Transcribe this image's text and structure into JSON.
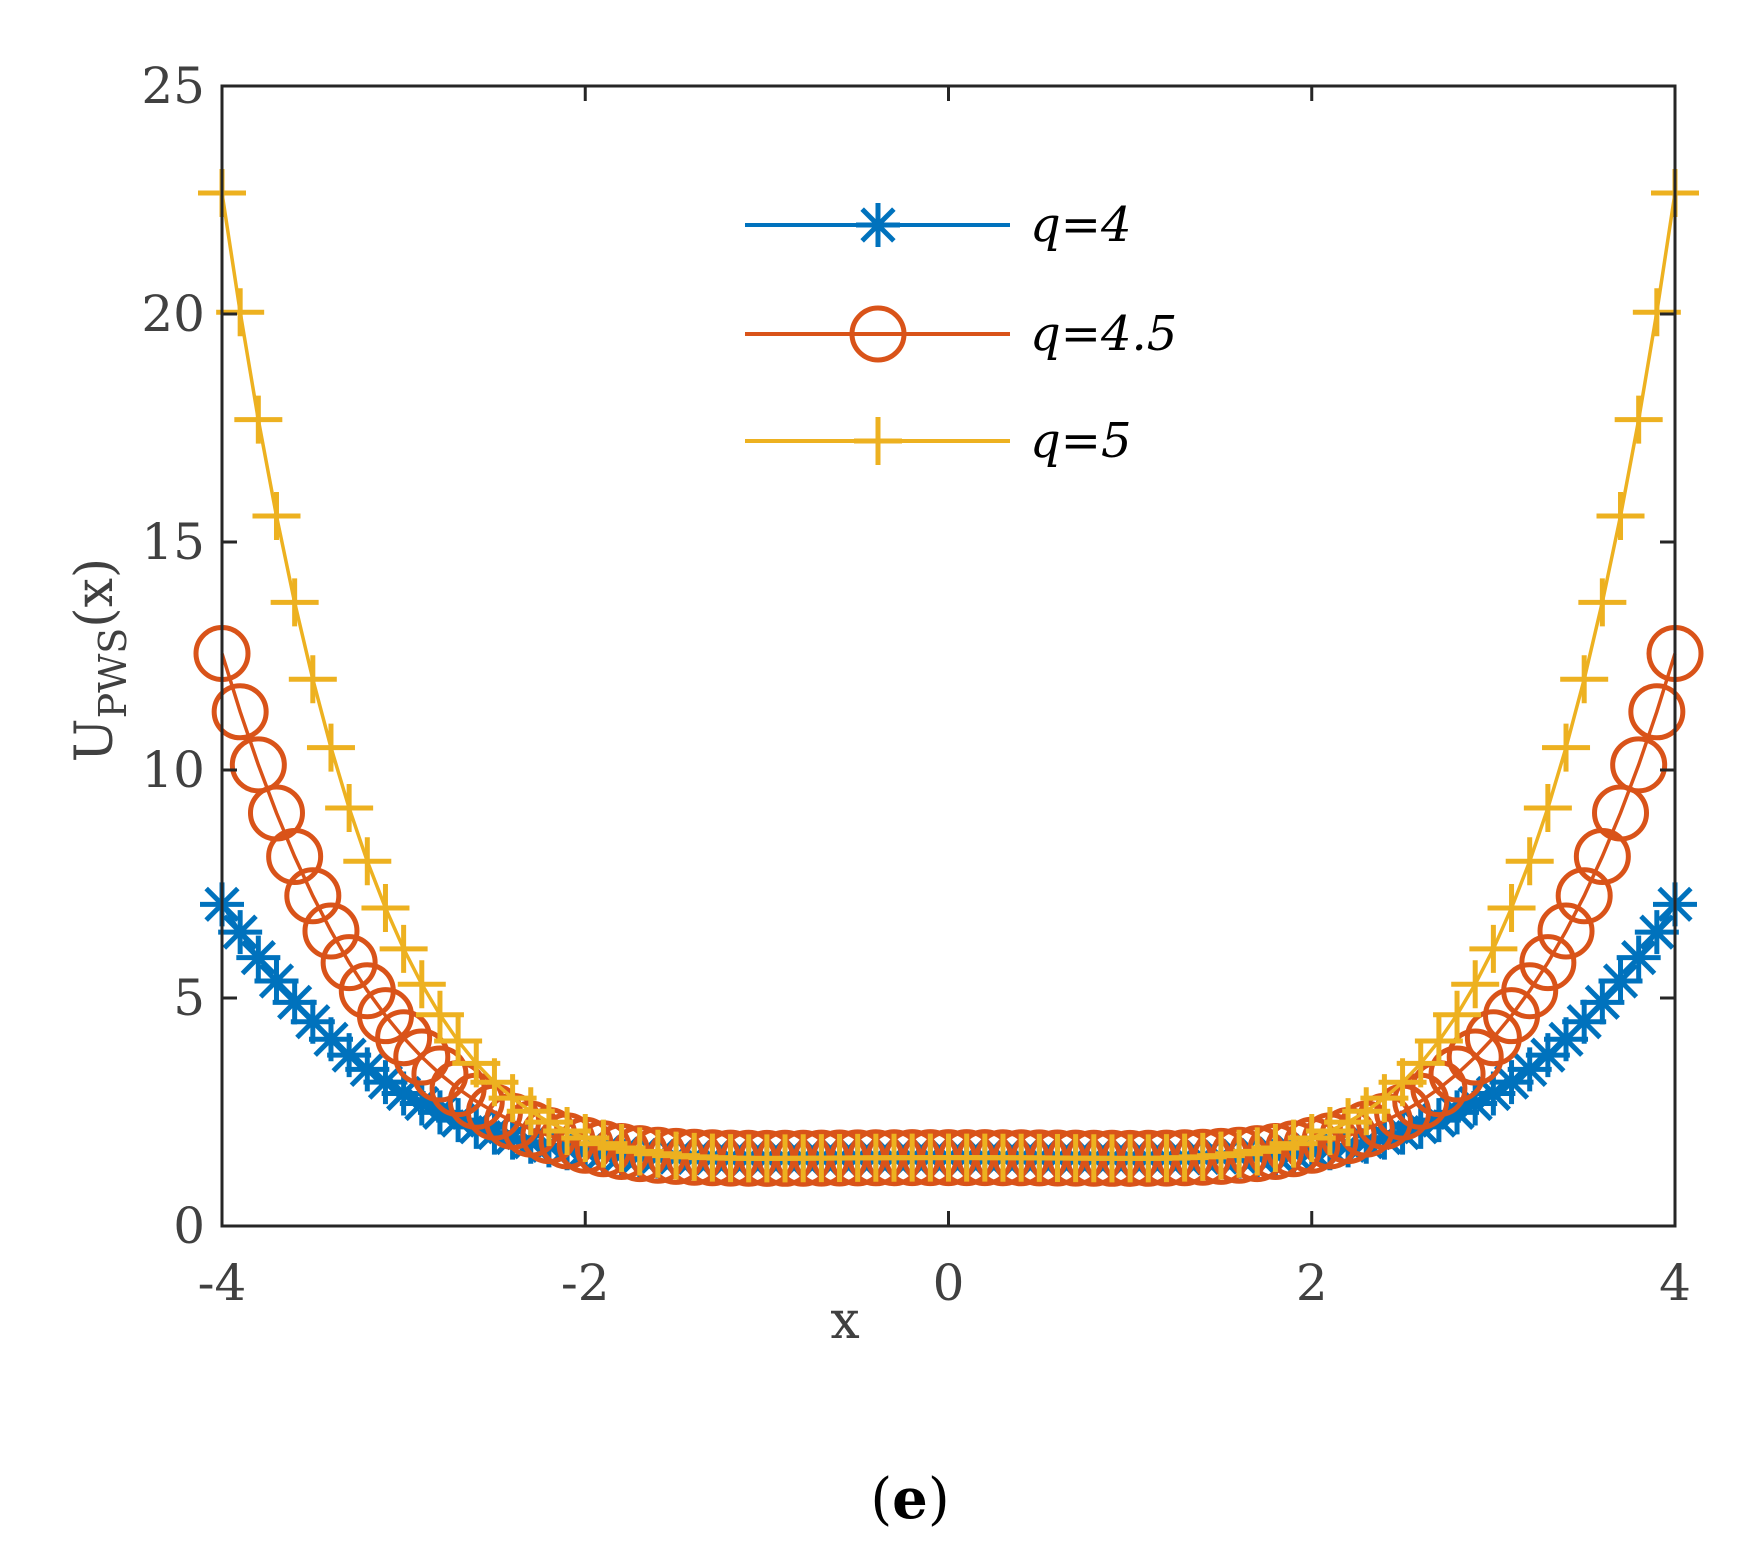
{
  "chart_data": {
    "type": "line",
    "title": "",
    "xlabel": "x",
    "ylabel_main": "U",
    "ylabel_sub": "PWS",
    "ylabel_tail": "(x)",
    "xlim": [
      -4,
      4
    ],
    "ylim": [
      0,
      25
    ],
    "xticks": [
      -4,
      -2,
      0,
      2,
      4
    ],
    "yticks": [
      0,
      5,
      10,
      15,
      20,
      25
    ],
    "xtick_labels": [
      "-4",
      "-2",
      "0",
      "2",
      "4"
    ],
    "ytick_labels": [
      "0",
      "5",
      "10",
      "15",
      "20",
      "25"
    ],
    "grid": false,
    "legend_position": "top-center",
    "panel_label": {
      "open": "(",
      "letter": "e",
      "close": ")"
    },
    "x_range": {
      "start": -4,
      "end": 4,
      "count": 81
    },
    "series": [
      {
        "name": "q=4",
        "legend_label": "q=4",
        "q": 4,
        "color": "#0072BD",
        "marker": "asterisk"
      },
      {
        "name": "q=4.5",
        "legend_label": "q=4.5",
        "q": 4.5,
        "color": "#D95319",
        "marker": "circle"
      },
      {
        "name": "q=5",
        "legend_label": "q=5",
        "q": 5,
        "color": "#EDB120",
        "marker": "plus"
      }
    ]
  }
}
